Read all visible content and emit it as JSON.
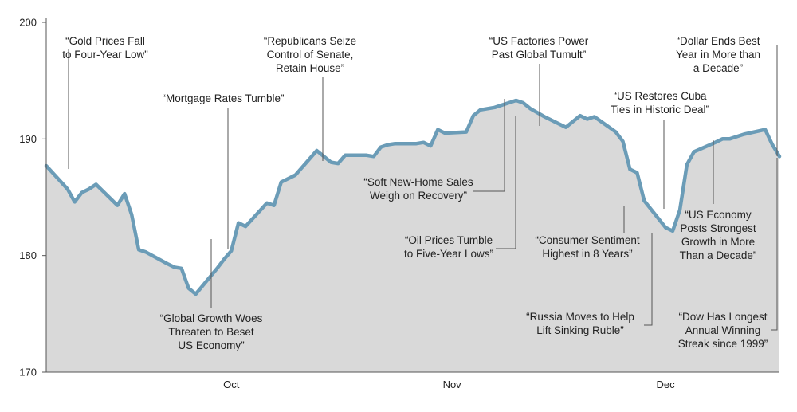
{
  "chart_data": {
    "type": "area",
    "title": "",
    "xlabel": "",
    "ylabel": "",
    "ylim": [
      170,
      200
    ],
    "xlim": [
      "2014-09-19",
      "2014-12-31"
    ],
    "yticks": [
      170,
      180,
      190,
      200
    ],
    "xticks": [
      {
        "date": "2014-10-15",
        "label": "Oct"
      },
      {
        "date": "2014-11-15",
        "label": "Nov"
      },
      {
        "date": "2014-12-15",
        "label": "Dec"
      }
    ],
    "grid": false,
    "colors": {
      "line": "#6b9cb7",
      "fill": "#d9d9d9",
      "axis": "#555555",
      "leader": "#555555",
      "text": "#222222"
    },
    "series": [
      {
        "x": [
          "2014-09-19",
          "2014-09-22",
          "2014-09-23",
          "2014-09-24",
          "2014-09-25",
          "2014-09-26",
          "2014-09-29",
          "2014-09-30",
          "2014-10-01",
          "2014-10-02",
          "2014-10-03",
          "2014-10-06",
          "2014-10-07",
          "2014-10-08",
          "2014-10-09",
          "2014-10-10",
          "2014-10-13",
          "2014-10-14",
          "2014-10-15",
          "2014-10-16",
          "2014-10-17",
          "2014-10-20",
          "2014-10-21",
          "2014-10-22",
          "2014-10-23",
          "2014-10-24",
          "2014-10-27",
          "2014-10-28",
          "2014-10-29",
          "2014-10-30",
          "2014-10-31",
          "2014-11-03",
          "2014-11-04",
          "2014-11-05",
          "2014-11-06",
          "2014-11-07",
          "2014-11-10",
          "2014-11-11",
          "2014-11-12",
          "2014-11-13",
          "2014-11-14",
          "2014-11-17",
          "2014-11-18",
          "2014-11-19",
          "2014-11-20",
          "2014-11-21",
          "2014-11-24",
          "2014-11-25",
          "2014-11-26",
          "2014-11-28",
          "2014-12-01",
          "2014-12-02",
          "2014-12-03",
          "2014-12-04",
          "2014-12-05",
          "2014-12-08",
          "2014-12-09",
          "2014-12-10",
          "2014-12-11",
          "2014-12-12",
          "2014-12-15",
          "2014-12-16",
          "2014-12-17",
          "2014-12-18",
          "2014-12-19",
          "2014-12-22",
          "2014-12-23",
          "2014-12-24",
          "2014-12-26",
          "2014-12-29",
          "2014-12-30",
          "2014-12-31"
        ],
        "y": [
          187.7,
          185.7,
          184.6,
          185.4,
          185.7,
          186.1,
          184.3,
          185.3,
          183.5,
          180.5,
          180.3,
          179.3,
          179.0,
          178.9,
          177.2,
          176.7,
          178.9,
          179.7,
          180.4,
          182.8,
          182.5,
          184.5,
          184.3,
          186.3,
          186.6,
          186.9,
          189.0,
          188.5,
          188.0,
          187.9,
          188.6,
          188.6,
          188.5,
          189.3,
          189.5,
          189.6,
          189.6,
          189.7,
          189.4,
          190.8,
          190.5,
          190.6,
          192.0,
          192.5,
          192.6,
          192.7,
          193.3,
          193.1,
          192.6,
          191.9,
          191.0,
          191.5,
          192.0,
          191.7,
          191.9,
          190.6,
          189.8,
          187.4,
          187.1,
          184.7,
          182.4,
          182.1,
          183.9,
          187.8,
          188.9,
          189.7,
          190.0,
          190.0,
          190.4,
          190.8,
          189.5,
          188.5
        ]
      }
    ],
    "annotations": [
      {
        "lines": [
          "“Gold Prices Fall",
          "to Four-Year Low”"
        ]
      },
      {
        "lines": [
          "“Mortgage Rates Tumble”"
        ]
      },
      {
        "lines": [
          "“Global Growth Woes",
          "Threaten to Beset",
          "US Economy”"
        ]
      },
      {
        "lines": [
          "“Republicans Seize",
          "Control of Senate,",
          "Retain House”"
        ]
      },
      {
        "lines": [
          "“Soft New-Home Sales",
          "Weigh on Recovery”"
        ]
      },
      {
        "lines": [
          "“US Factories Power",
          "Past Global Tumult”"
        ]
      },
      {
        "lines": [
          "“Oil Prices Tumble",
          "to Five-Year Lows”"
        ]
      },
      {
        "lines": [
          "“Consumer Sentiment",
          "Highest in 8 Years”"
        ]
      },
      {
        "lines": [
          "“Russia Moves to Help",
          "Lift Sinking Ruble”"
        ]
      },
      {
        "lines": [
          "“US Restores Cuba",
          "Ties in Historic Deal”"
        ]
      },
      {
        "lines": [
          "“Dollar Ends Best",
          "Year in More than",
          "a Decade”"
        ]
      },
      {
        "lines": [
          "“US Economy",
          "Posts Strongest",
          "Growth in More",
          "Than a Decade”"
        ]
      },
      {
        "lines": [
          "“Dow Has Longest",
          "Annual Winning",
          "Streak since 1999”"
        ]
      }
    ]
  }
}
